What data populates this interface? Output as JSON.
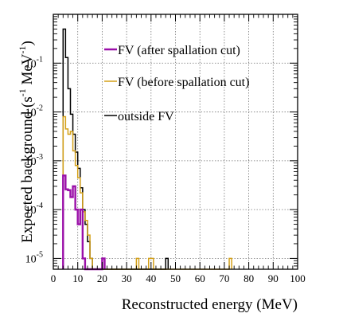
{
  "chart_data": {
    "type": "line",
    "xlabel": "Reconstructed energy (MeV)",
    "ylabel_text": "Expected background (s",
    "ylabel_sup1": "-1",
    "ylabel_mid": " MeV",
    "ylabel_sup2": "-1",
    "ylabel_close": ")",
    "xlim": [
      0,
      100
    ],
    "ylim": [
      6e-06,
      1.0
    ],
    "yscale": "log",
    "grid": true,
    "legend_position": "top-right",
    "x_ticks": [
      "0",
      "10",
      "20",
      "30",
      "40",
      "50",
      "60",
      "70",
      "80",
      "90",
      "100"
    ],
    "y_ticks": [
      {
        "base": "10",
        "exp": "-5",
        "value": 1e-05
      },
      {
        "base": "10",
        "exp": "-4",
        "value": 0.0001
      },
      {
        "base": "10",
        "exp": "-3",
        "value": 0.001
      },
      {
        "base": "10",
        "exp": "-2",
        "value": 0.01
      },
      {
        "base": "10",
        "exp": "-1",
        "value": 0.1
      }
    ],
    "series": [
      {
        "name": "outside FV",
        "color": "#000000",
        "step": [
          [
            4,
            0.5
          ],
          [
            5,
            0.13
          ],
          [
            6,
            0.03
          ],
          [
            7,
            0.009
          ],
          [
            8,
            0.0035
          ],
          [
            9,
            0.0015
          ],
          [
            10,
            0.0007
          ],
          [
            11,
            0.00028
          ],
          [
            12,
            0.0001
          ],
          [
            13,
            5e-05
          ],
          [
            14,
            2.2e-05
          ],
          [
            15,
            1e-05
          ],
          [
            16,
            0
          ],
          [
            46,
            1e-05
          ],
          [
            47,
            0
          ]
        ]
      },
      {
        "name": "FV (before spallation cut)",
        "color": "#d4a017",
        "step": [
          [
            4,
            0.008
          ],
          [
            5,
            0.0045
          ],
          [
            6,
            0.0035
          ],
          [
            7,
            0.004
          ],
          [
            8,
            0.0016
          ],
          [
            9,
            0.0008
          ],
          [
            10,
            0.00045
          ],
          [
            11,
            0.00022
          ],
          [
            12,
            9e-05
          ],
          [
            13,
            6e-05
          ],
          [
            14,
            3e-05
          ],
          [
            15,
            1e-05
          ],
          [
            16,
            0
          ],
          [
            34,
            1e-05
          ],
          [
            35,
            0
          ],
          [
            39,
            1e-05
          ],
          [
            41,
            0
          ],
          [
            72,
            1e-05
          ],
          [
            73,
            0
          ]
        ]
      },
      {
        "name": "FV (after spallation cut)",
        "color": "#9a0fa8",
        "step": [
          [
            4,
            0.0005
          ],
          [
            5,
            0.00026
          ],
          [
            6,
            0.00025
          ],
          [
            7,
            0.00018
          ],
          [
            8,
            0.0003
          ],
          [
            9,
            0.0001
          ],
          [
            10,
            5e-05
          ],
          [
            11,
            0.0001
          ],
          [
            12,
            1e-05
          ],
          [
            13,
            0
          ],
          [
            20,
            1e-05
          ],
          [
            21,
            0
          ]
        ]
      }
    ],
    "legend_order": [
      {
        "label": "FV (after spallation cut)",
        "color": "#9a0fa8"
      },
      {
        "label": "FV (before spallation cut)",
        "color": "#d4a017"
      },
      {
        "label": "outside FV",
        "color": "#000000"
      }
    ]
  }
}
